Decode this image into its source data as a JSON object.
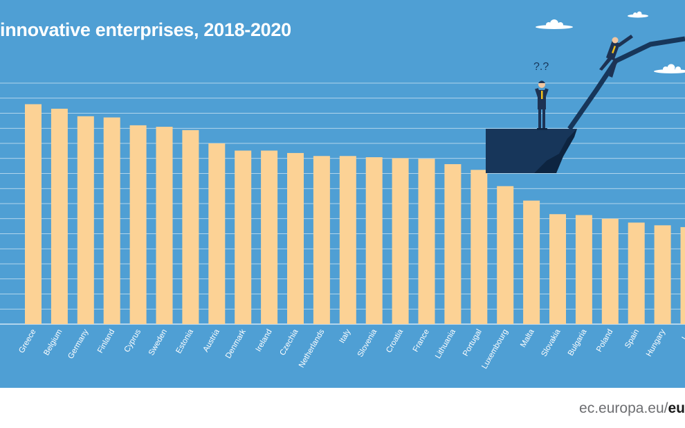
{
  "chart_data": {
    "type": "bar",
    "title": "innovative enterprises, 2018-2020",
    "categories": [
      "Greece",
      "Belgium",
      "Germany",
      "Finland",
      "Cyprus",
      "Sweden",
      "Estonia",
      "Austria",
      "Denmark",
      "Ireland",
      "Czechia",
      "Netherlands",
      "Italy",
      "Slovenia",
      "Croatia",
      "France",
      "Lithuania",
      "Portugal",
      "Luxembourg",
      "Malta",
      "Slovakia",
      "Bulgaria",
      "Poland",
      "Spain",
      "Hungary",
      "Lat"
    ],
    "values": [
      73,
      71.5,
      69,
      68.6,
      66,
      65.5,
      64.4,
      60,
      57.6,
      57.6,
      56.8,
      55.8,
      55.8,
      55.4,
      55.1,
      54.9,
      53.1,
      51.2,
      45.8,
      41,
      36.5,
      36.2,
      35,
      33.7,
      32.8,
      32.2
    ],
    "ylim": [
      0,
      80
    ],
    "grid": true,
    "xlabel": "",
    "ylabel": "",
    "colors": {
      "bar": "#fcd295",
      "background": "#4f9fd4",
      "grid": "#ffffff",
      "cliff": "#17365a",
      "suit": "#1d3253",
      "tie": "#f3c21c"
    }
  },
  "illustration": {
    "question_marks": "?.?",
    "icons": [
      "cloud-icon",
      "businessman-icon",
      "cliff-icon"
    ]
  },
  "footer": {
    "site": "ec.europa.eu/",
    "bold": "eu"
  }
}
